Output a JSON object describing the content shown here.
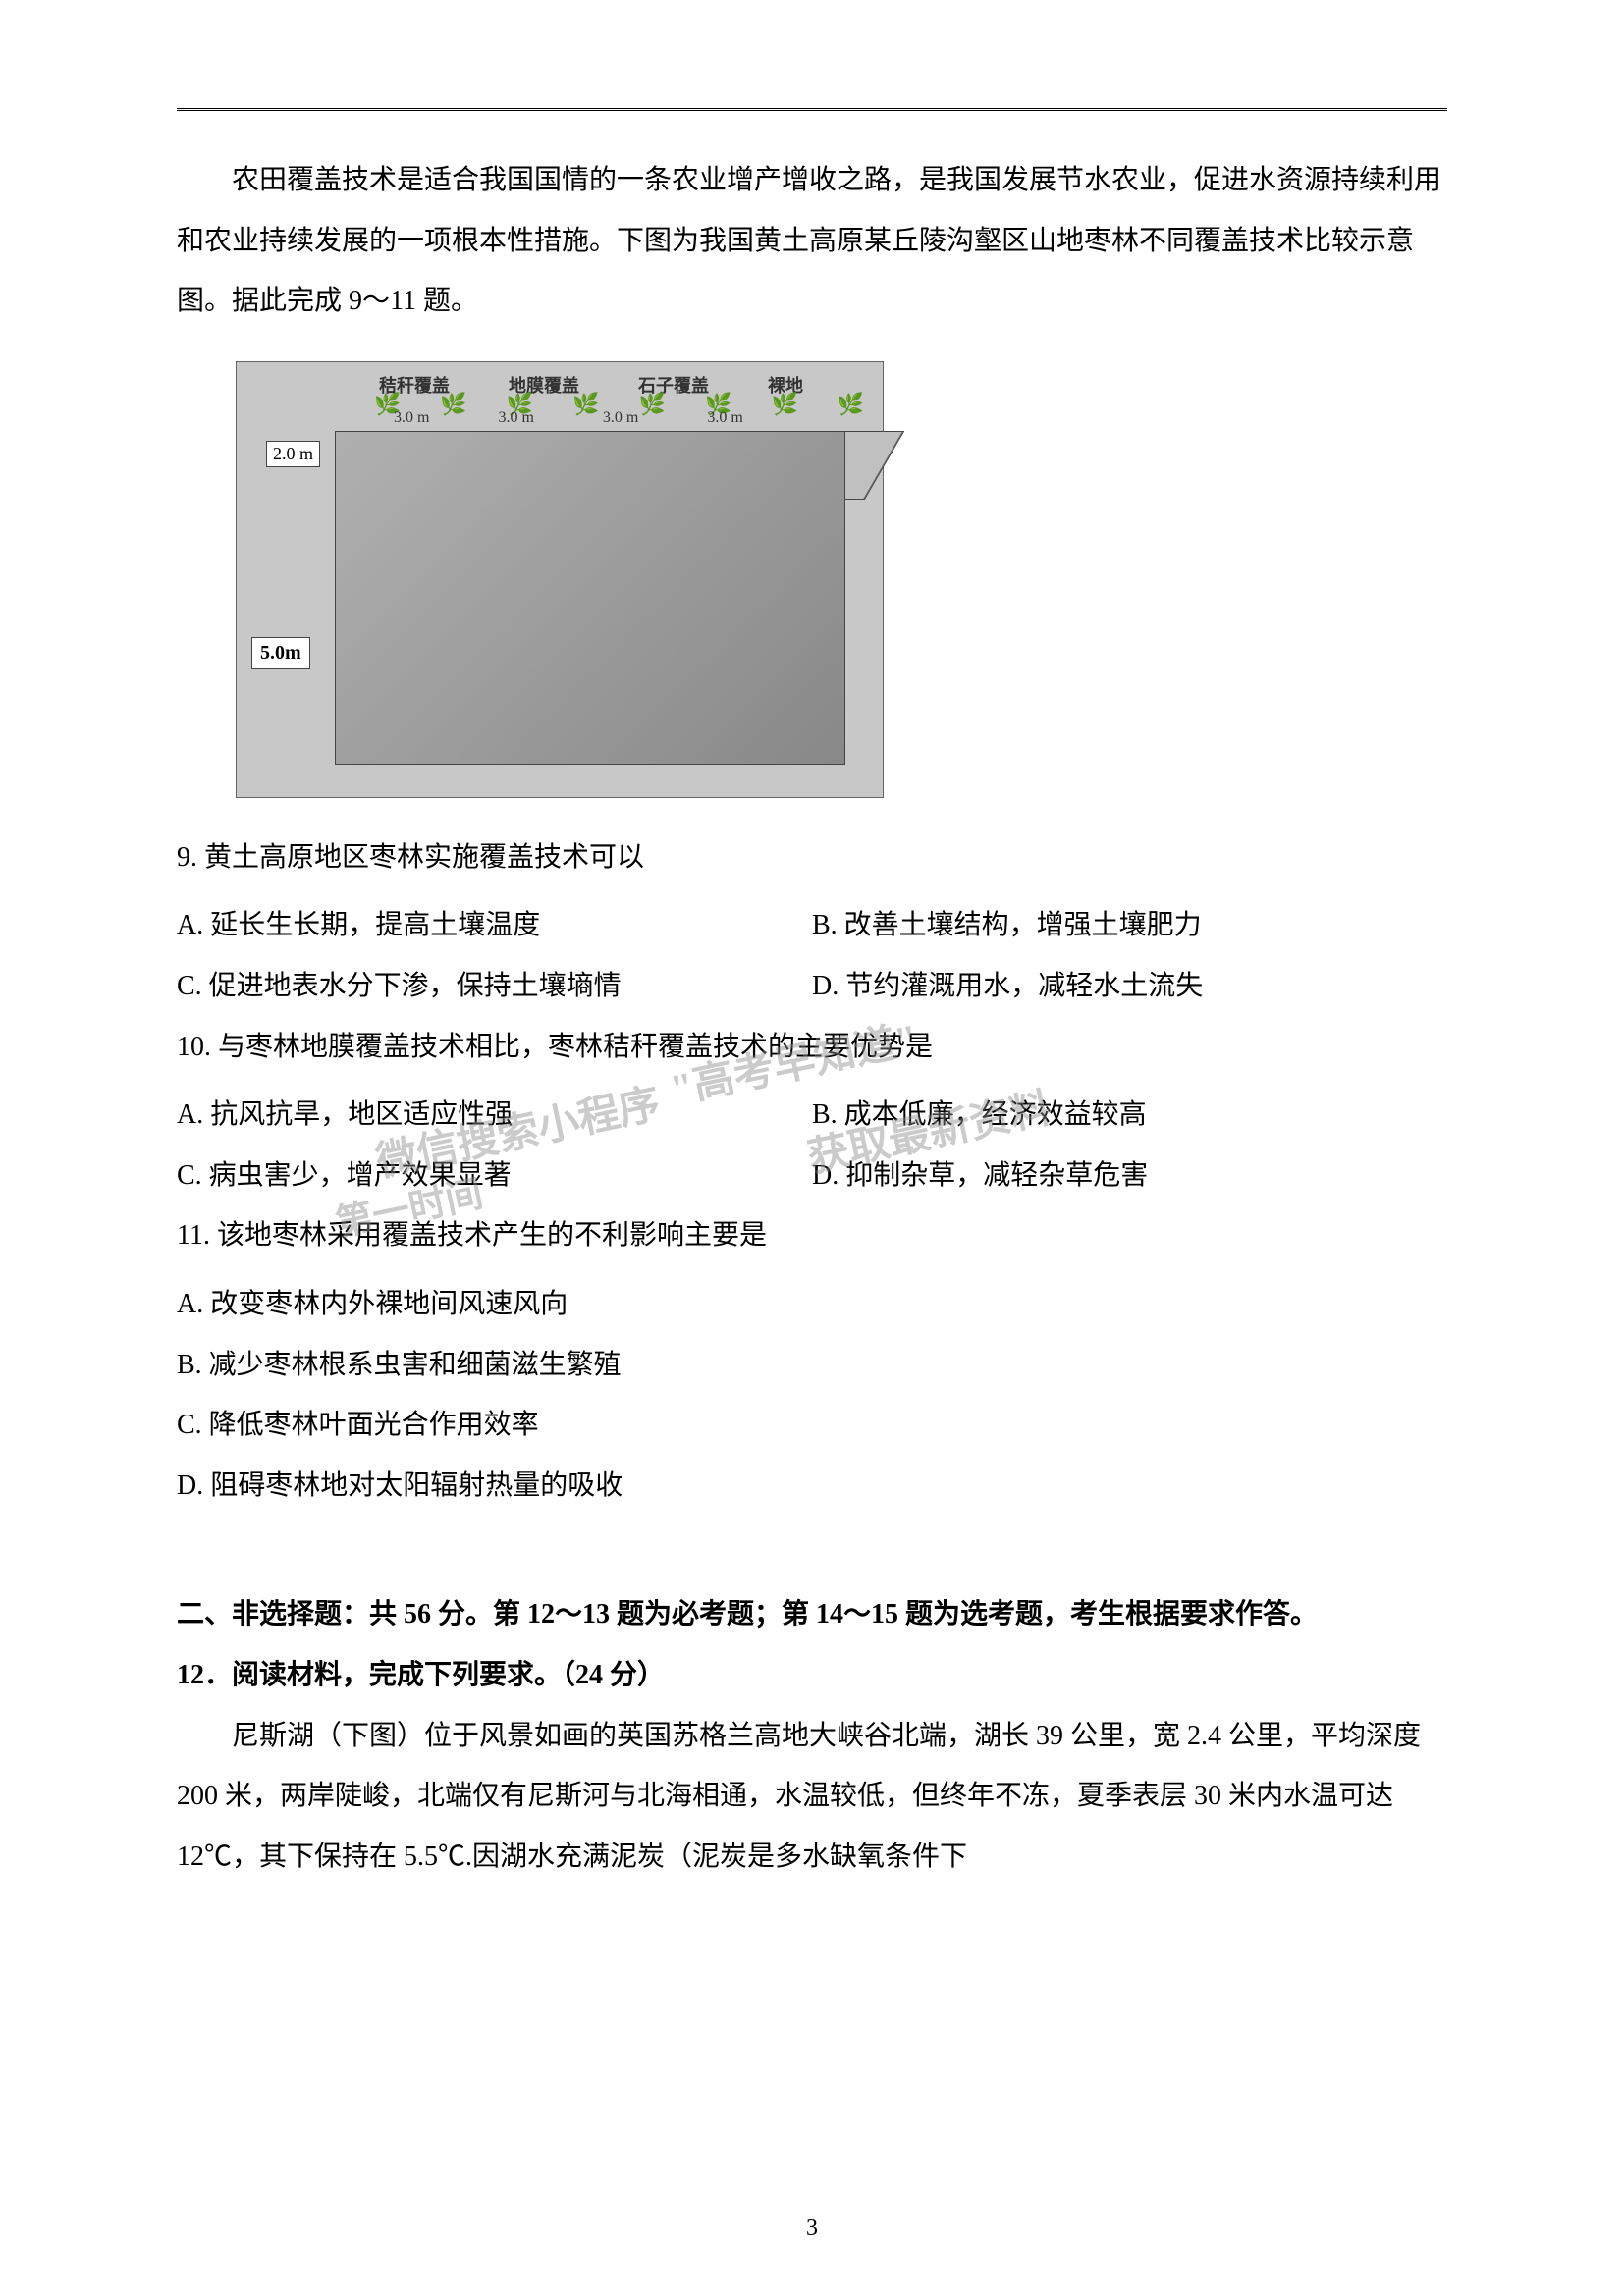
{
  "page": {
    "number": "3",
    "background_color": "#ffffff",
    "text_color": "#000000",
    "font_family": "SimSun"
  },
  "intro": {
    "text": "农田覆盖技术是适合我国国情的一条农业增产增收之路，是我国发展节水农业，促进水资源持续利用和农业持续发展的一项根本性措施。下图为我国黄土高原某丘陵沟壑区山地枣林不同覆盖技术比较示意图。据此完成 9～11 题。"
  },
  "diagram": {
    "type": "infographic",
    "background_color": "#c8c8c8",
    "block_color": "#a0a0a0",
    "border_color": "#444444",
    "labels_top": [
      "秸秆覆盖",
      "地膜覆盖",
      "石子覆盖",
      "裸地"
    ],
    "dim_2m": "2.0 m",
    "dim_5m": "5.0m",
    "dim_3m_values": [
      "3.0 m",
      "3.0 m",
      "3.0 m",
      "3.0 m"
    ],
    "plot_colors": [
      "#999999",
      "#222222",
      "#b0b0b0",
      "#c0c0c0"
    ]
  },
  "q9": {
    "stem": "9. 黄土高原地区枣林实施覆盖技术可以",
    "optA": "A. 延长生长期，提高土壤温度",
    "optB": "B. 改善土壤结构，增强土壤肥力",
    "optC": "C. 促进地表水分下渗，保持土壤墒情",
    "optD": "D. 节约灌溉用水，减轻水土流失"
  },
  "q10": {
    "stem": "10. 与枣林地膜覆盖技术相比，枣林秸秆覆盖技术的主要优势是",
    "optA": "A. 抗风抗旱，地区适应性强",
    "optB": "B. 成本低廉，经济效益较高",
    "optC": "C. 病虫害少，增产效果显著",
    "optD": "D. 抑制杂草，减轻杂草危害"
  },
  "q11": {
    "stem": "11. 该地枣林采用覆盖技术产生的不利影响主要是",
    "optA": "A. 改变枣林内外裸地间风速风向",
    "optB": "B. 减少枣林根系虫害和细菌滋生繁殖",
    "optC": "C. 降低枣林叶面光合作用效率",
    "optD": "D. 阻碍枣林地对太阳辐射热量的吸收"
  },
  "section2": {
    "header": "二、非选择题：共 56 分。第 12～13 题为必考题；第 14～15 题为选考题，考生根据要求作答。"
  },
  "q12": {
    "title": "12．阅读材料，完成下列要求。（24 分）",
    "passage": "尼斯湖（下图）位于风景如画的英国苏格兰高地大峡谷北端，湖长 39 公里，宽 2.4 公里，平均深度 200 米，两岸陡峻，北端仅有尼斯河与北海相通，水温较低，但终年不冻，夏季表层 30 米内水温可达 12℃，其下保持在 5.5℃.因湖水充满泥炭（泥炭是多水缺氧条件下"
  },
  "watermarks": {
    "wm1": "\"高考早知道\"",
    "wm2": "微信搜索小程序",
    "wm3": "获取最新资料",
    "wm4": "第一时间"
  }
}
